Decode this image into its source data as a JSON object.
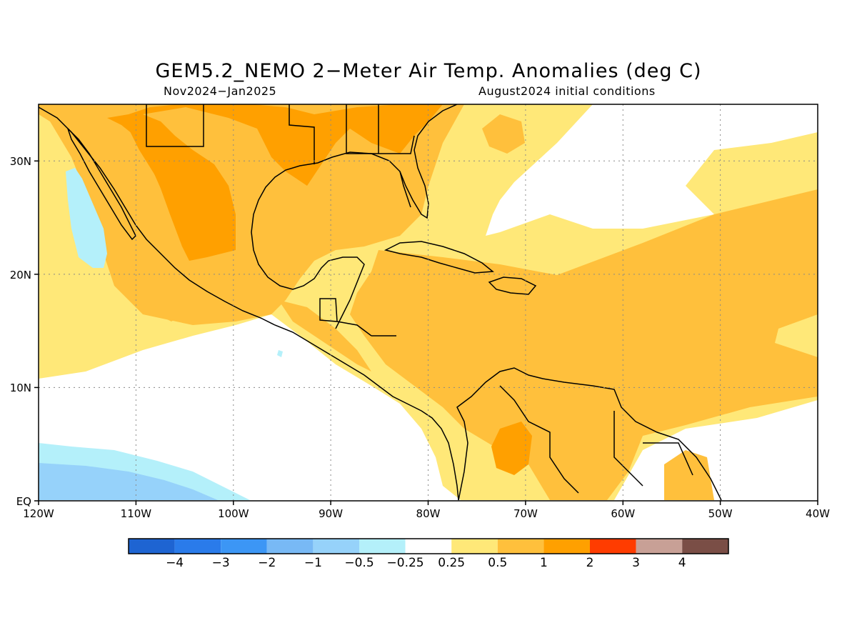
{
  "title": "GEM5.2_NEMO 2−Meter Air Temp. Anomalies (deg C)",
  "subtitle_left": "Nov2024−Jan2025",
  "subtitle_right": "August2024 initial conditions",
  "map": {
    "region": "Gulf of Mexico, Caribbean and Central America",
    "variable": "2-meter air temperature anomaly",
    "units": "deg C",
    "lon_range": [
      -120,
      -40
    ],
    "lat_range": [
      0,
      35
    ],
    "lon_ticks": [
      "120W",
      "110W",
      "100W",
      "90W",
      "80W",
      "70W",
      "60W",
      "50W",
      "40W"
    ],
    "lat_ticks": [
      "EQ",
      "10N",
      "20N",
      "30N"
    ],
    "grid": true
  },
  "colorbar": {
    "labels": [
      "−4",
      "−3",
      "−2",
      "−1",
      "−0.5",
      "−0.25",
      "0.25",
      "0.5",
      "1",
      "2",
      "3",
      "4"
    ],
    "colors": [
      "#1e64d2",
      "#2a7bea",
      "#3c96f5",
      "#78b9f5",
      "#96d2fa",
      "#b4f0fa",
      "#ffffff",
      "#ffe878",
      "#ffc03c",
      "#ffa000",
      "#ff3c00",
      "#c8a096",
      "#7a4e46"
    ]
  }
}
